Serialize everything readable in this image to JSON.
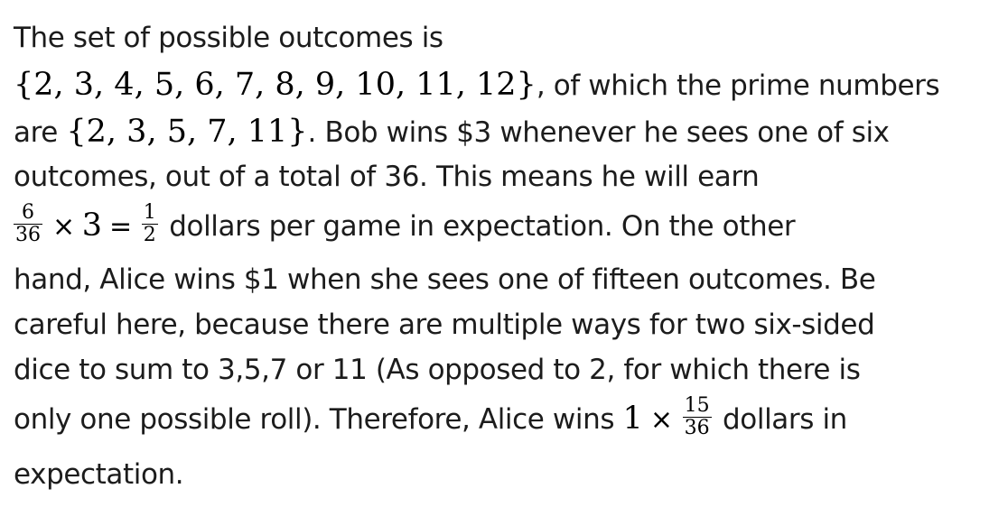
{
  "document": {
    "lines": [
      {
        "text": "The set of possible outcomes is"
      },
      {
        "math": "{2, 3, 4, 5, 6, 7, 8, 9, 10, 11, 12}",
        "text_after": ", of which the prime numbers"
      },
      {
        "text_before": "are ",
        "math": "{2, 3, 5, 7, 11}",
        "text_after": ". Bob wins $3 whenever he sees one of six"
      },
      {
        "text": "outcomes, out of a total of 36. This means he will earn"
      },
      {
        "frac1": {
          "num": "6",
          "den": "36"
        },
        "times": "×",
        "three": "3",
        "equals": "=",
        "frac2": {
          "num": "1",
          "den": "2"
        },
        "text_after": " dollars per game in expectation. On the other"
      },
      {
        "text": "hand, Alice wins $1 when she sees one of fifteen outcomes. Be"
      },
      {
        "text": "careful here, because there are multiple ways for two six-sided"
      },
      {
        "text": "dice to sum to 3,5,7 or 11 (As opposed to 2, for which there is"
      },
      {
        "text_before": "only one possible roll). Therefore, Alice wins ",
        "one": "1",
        "times": "×",
        "frac": {
          "num": "15",
          "den": "36"
        },
        "text_after": " dollars in"
      },
      {
        "text": "expectation."
      }
    ]
  }
}
